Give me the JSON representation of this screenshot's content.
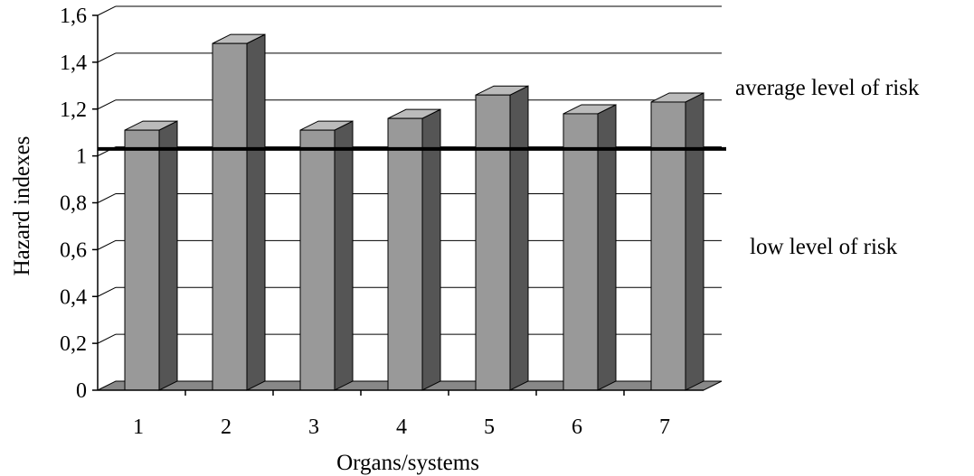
{
  "chart_data": {
    "type": "bar",
    "style": "3d-column",
    "categories": [
      "1",
      "2",
      "3",
      "4",
      "5",
      "6",
      "7"
    ],
    "values": [
      1.11,
      1.48,
      1.11,
      1.16,
      1.26,
      1.18,
      1.23
    ],
    "xlabel": "Organs/systems",
    "ylabel": "Hazard indexes",
    "ylim": [
      0,
      1.6
    ],
    "yticks": [
      "0",
      "0,2",
      "0,4",
      "0,6",
      "0,8",
      "1",
      "1,2",
      "1,4",
      "1,6"
    ],
    "grid": true,
    "reference_line": {
      "value": 1.03
    },
    "annotations": [
      "average level of risk",
      "low level of risk"
    ],
    "colors": {
      "bar_front": "#999999",
      "bar_side": "#555555",
      "bar_top": "#bbbbbb",
      "floor": "#888888",
      "reference_line": "#000000"
    }
  }
}
